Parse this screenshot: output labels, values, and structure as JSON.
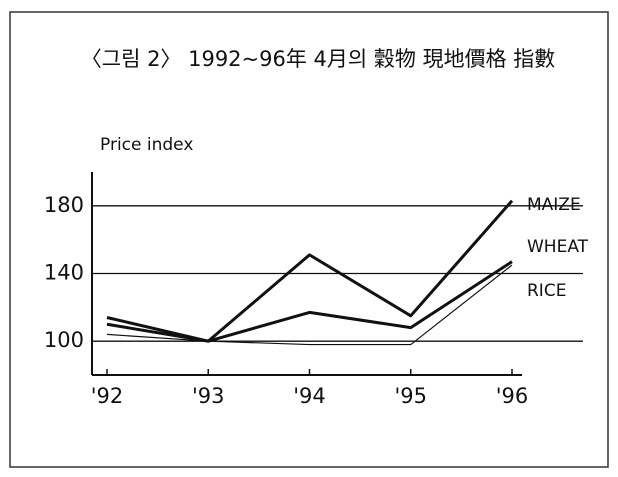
{
  "chart_data": {
    "type": "line",
    "title": "〈그림 2〉 1992~96年 4月의 穀物 現地價格 指數",
    "y_label": "Price index",
    "categories": [
      "'92",
      "'93",
      "'94",
      "'95",
      "'96"
    ],
    "series": [
      {
        "name": "MAIZE",
        "color": "#111111",
        "values": [
          110,
          100,
          151,
          115,
          183
        ]
      },
      {
        "name": "WHEAT",
        "color": "#111111",
        "values": [
          114,
          100,
          117,
          108,
          147
        ]
      },
      {
        "name": "RICE",
        "color": "#111111",
        "values": [
          104,
          100,
          98,
          98,
          145
        ]
      }
    ],
    "ylim": [
      80,
      200
    ],
    "yticks": [
      100,
      140,
      180
    ],
    "grid": true
  }
}
